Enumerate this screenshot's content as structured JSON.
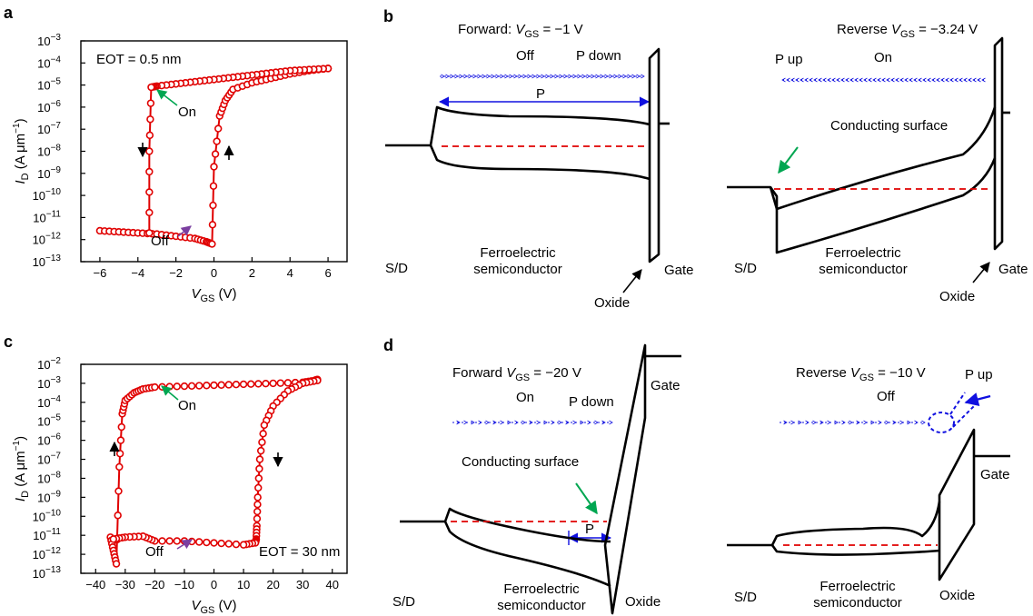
{
  "chart_data": [
    {
      "type": "scatter",
      "panel": "a",
      "xlabel": "V",
      "xlabel_sub": "GS",
      "xlabel_unit": " (V)",
      "ylabel": "I",
      "ylabel_sub": "D",
      "ylabel_unit": " (A μm",
      "ylabel_unit_sup": "−1",
      "ylabel_unit_close": ")",
      "xlim": [
        -7,
        7
      ],
      "ylim_exp": [
        -13,
        -3
      ],
      "log_y": true,
      "x_ticks": [
        -6,
        -4,
        -2,
        0,
        2,
        4,
        6
      ],
      "x_tick_labels": [
        "−6",
        "−4",
        "−2",
        "0",
        "2",
        "4",
        "6"
      ],
      "y_tick_exps": [
        -13,
        -12,
        -11,
        -10,
        -9,
        -8,
        -7,
        -6,
        -5,
        -4,
        -3
      ],
      "y_tick_base": "10",
      "y_tick_exp_labels": [
        "−13",
        "−12",
        "−11",
        "−10",
        "−9",
        "−8",
        "−7",
        "−6",
        "−5",
        "−4",
        "−3"
      ],
      "annotations": {
        "eot": "EOT = 0.5 nm",
        "on": "On",
        "off": "Off"
      },
      "sweep_up": {
        "x": [
          -6,
          -5,
          -4,
          -3,
          -2,
          -1,
          -0.4,
          -0.1,
          0,
          0.3,
          0.6,
          1,
          2,
          3,
          4,
          5,
          6
        ],
        "log10_y": [
          -11.6,
          -11.65,
          -11.7,
          -11.75,
          -11.85,
          -11.95,
          -12.1,
          -12.2,
          -8.7,
          -6.4,
          -5.7,
          -5.2,
          -4.9,
          -4.7,
          -4.5,
          -4.35,
          -4.25
        ]
      },
      "sweep_down": {
        "x": [
          6,
          5,
          4,
          3,
          2,
          1,
          0,
          -1,
          -2,
          -3,
          -3.3,
          -3.4,
          -3.4
        ],
        "log10_y": [
          -4.25,
          -4.3,
          -4.35,
          -4.45,
          -4.55,
          -4.65,
          -4.75,
          -4.85,
          -4.95,
          -5.05,
          -5.1,
          -8,
          -11.7
        ]
      }
    },
    {
      "type": "scatter",
      "panel": "c",
      "xlabel": "V",
      "xlabel_sub": "GS",
      "xlabel_unit": " (V)",
      "ylabel": "I",
      "ylabel_sub": "D",
      "ylabel_unit": " (A μm",
      "ylabel_unit_sup": "−1",
      "ylabel_unit_close": ")",
      "xlim": [
        -45,
        45
      ],
      "ylim_exp": [
        -13,
        -2
      ],
      "log_y": true,
      "x_ticks": [
        -40,
        -30,
        -20,
        -10,
        0,
        10,
        20,
        30,
        40
      ],
      "x_tick_labels": [
        "−40",
        "−30",
        "−20",
        "−10",
        "0",
        "10",
        "20",
        "30",
        "40"
      ],
      "y_tick_exps": [
        -13,
        -12,
        -11,
        -10,
        -9,
        -8,
        -7,
        -6,
        -5,
        -4,
        -3,
        -2
      ],
      "y_tick_base": "10",
      "y_tick_exp_labels": [
        "−13",
        "−12",
        "−11",
        "−10",
        "−9",
        "−8",
        "−7",
        "−6",
        "−5",
        "−4",
        "−3",
        "−2"
      ],
      "annotations": {
        "eot": "EOT = 30 nm",
        "on": "On",
        "off": "Off"
      },
      "sweep_up": {
        "x": [
          -35,
          -34,
          -33,
          -32,
          -31,
          -30,
          -27,
          -24,
          -20,
          -10,
          0,
          10,
          20,
          30,
          34,
          35
        ],
        "log10_y": [
          -11.1,
          -11.8,
          -12.5,
          -7.4,
          -4.6,
          -3.9,
          -3.5,
          -3.3,
          -3.2,
          -3.15,
          -3.1,
          -3.05,
          -3.0,
          -2.95,
          -2.85,
          -2.8
        ]
      },
      "sweep_down": {
        "x": [
          35,
          30,
          25,
          20,
          17,
          15.5,
          14.8,
          14.5,
          14.3,
          14,
          10,
          0,
          -10,
          -20,
          -24,
          -30,
          -34
        ],
        "log10_y": [
          -2.85,
          -3.0,
          -3.4,
          -4.2,
          -5.2,
          -7.0,
          -9.0,
          -10.5,
          -11.2,
          -11.4,
          -11.5,
          -11.4,
          -11.3,
          -11.3,
          -11.05,
          -11.1,
          -11.2
        ]
      }
    }
  ],
  "panels": {
    "b": {
      "letter": "b",
      "forward_title": "Forward: ",
      "forward_v": "V",
      "forward_sub": "GS",
      "forward_val": " = −1 V",
      "forward_off": "Off",
      "forward_p": "P down",
      "forward_p_width": "P",
      "forward_sd": "S/D",
      "forward_semi_1": "Ferroelectric",
      "forward_semi_2": "semiconductor",
      "forward_oxide": "Oxide",
      "forward_gate": "Gate",
      "reverse_title": "Reverse ",
      "reverse_v": "V",
      "reverse_sub": "GS",
      "reverse_val": " = −3.24 V",
      "reverse_p": "P up",
      "reverse_on": "On",
      "reverse_surface": "Conducting surface",
      "reverse_sd": "S/D",
      "reverse_semi_1": "Ferroelectric",
      "reverse_semi_2": "semiconductor",
      "reverse_oxide": "Oxide",
      "reverse_gate": "Gate"
    },
    "d": {
      "letter": "d",
      "forward_title": "Forward ",
      "forward_v": "V",
      "forward_sub": "GS",
      "forward_val": " = −20 V",
      "forward_on": "On",
      "forward_p": "P down",
      "forward_surface": "Conducting surface",
      "forward_p_width": "P",
      "forward_gate": "Gate",
      "forward_sd": "S/D",
      "forward_semi_1": "Ferroelectric",
      "forward_semi_2": "semiconductor",
      "forward_oxide": "Oxide",
      "reverse_title": "Reverse ",
      "reverse_v": "V",
      "reverse_sub": "GS",
      "reverse_val": " = −10 V",
      "reverse_p": "P up",
      "reverse_off": "Off",
      "reverse_gate": "Gate",
      "reverse_sd": "S/D",
      "reverse_semi_1": "Ferroelectric",
      "reverse_semi_2": "semiconductor",
      "reverse_oxide": "Oxide"
    },
    "a_letter": "a",
    "c_letter": "c"
  },
  "colors": {
    "data": "#e00000",
    "marker_fill": "#ffffff",
    "on": "#00a651",
    "off": "#7b3fa0",
    "polarization": "#1010e0",
    "fermi": "#e00000"
  }
}
